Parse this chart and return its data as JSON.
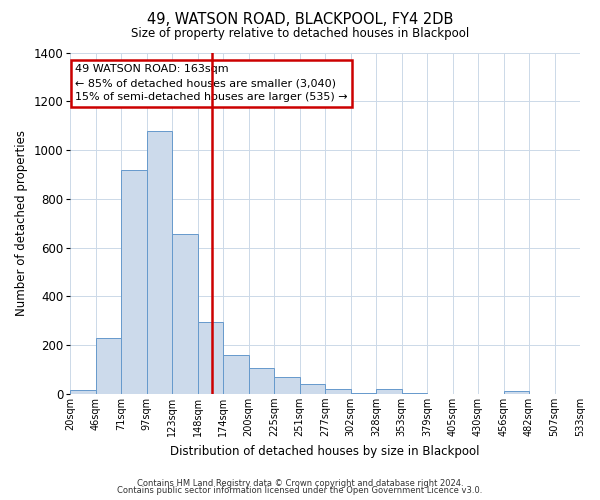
{
  "title": "49, WATSON ROAD, BLACKPOOL, FY4 2DB",
  "subtitle": "Size of property relative to detached houses in Blackpool",
  "xlabel": "Distribution of detached houses by size in Blackpool",
  "ylabel": "Number of detached properties",
  "bin_labels": [
    "20sqm",
    "46sqm",
    "71sqm",
    "97sqm",
    "123sqm",
    "148sqm",
    "174sqm",
    "200sqm",
    "225sqm",
    "251sqm",
    "277sqm",
    "302sqm",
    "328sqm",
    "353sqm",
    "379sqm",
    "405sqm",
    "430sqm",
    "456sqm",
    "482sqm",
    "507sqm",
    "533sqm"
  ],
  "bar_values": [
    15,
    228,
    918,
    1080,
    655,
    293,
    158,
    108,
    70,
    40,
    22,
    5,
    18,
    5,
    0,
    0,
    0,
    10,
    0,
    0
  ],
  "bar_color": "#ccdaeb",
  "bar_edgecolor": "#6699cc",
  "vline_color": "#cc0000",
  "ylim": [
    0,
    1400
  ],
  "yticks": [
    0,
    200,
    400,
    600,
    800,
    1000,
    1200,
    1400
  ],
  "annotation_title": "49 WATSON ROAD: 163sqm",
  "annotation_line1": "← 85% of detached houses are smaller (3,040)",
  "annotation_line2": "15% of semi-detached houses are larger (535) →",
  "annotation_box_color": "#cc0000",
  "footnote1": "Contains HM Land Registry data © Crown copyright and database right 2024.",
  "footnote2": "Contains public sector information licensed under the Open Government Licence v3.0.",
  "background_color": "#ffffff",
  "grid_color": "#ccd9e8"
}
